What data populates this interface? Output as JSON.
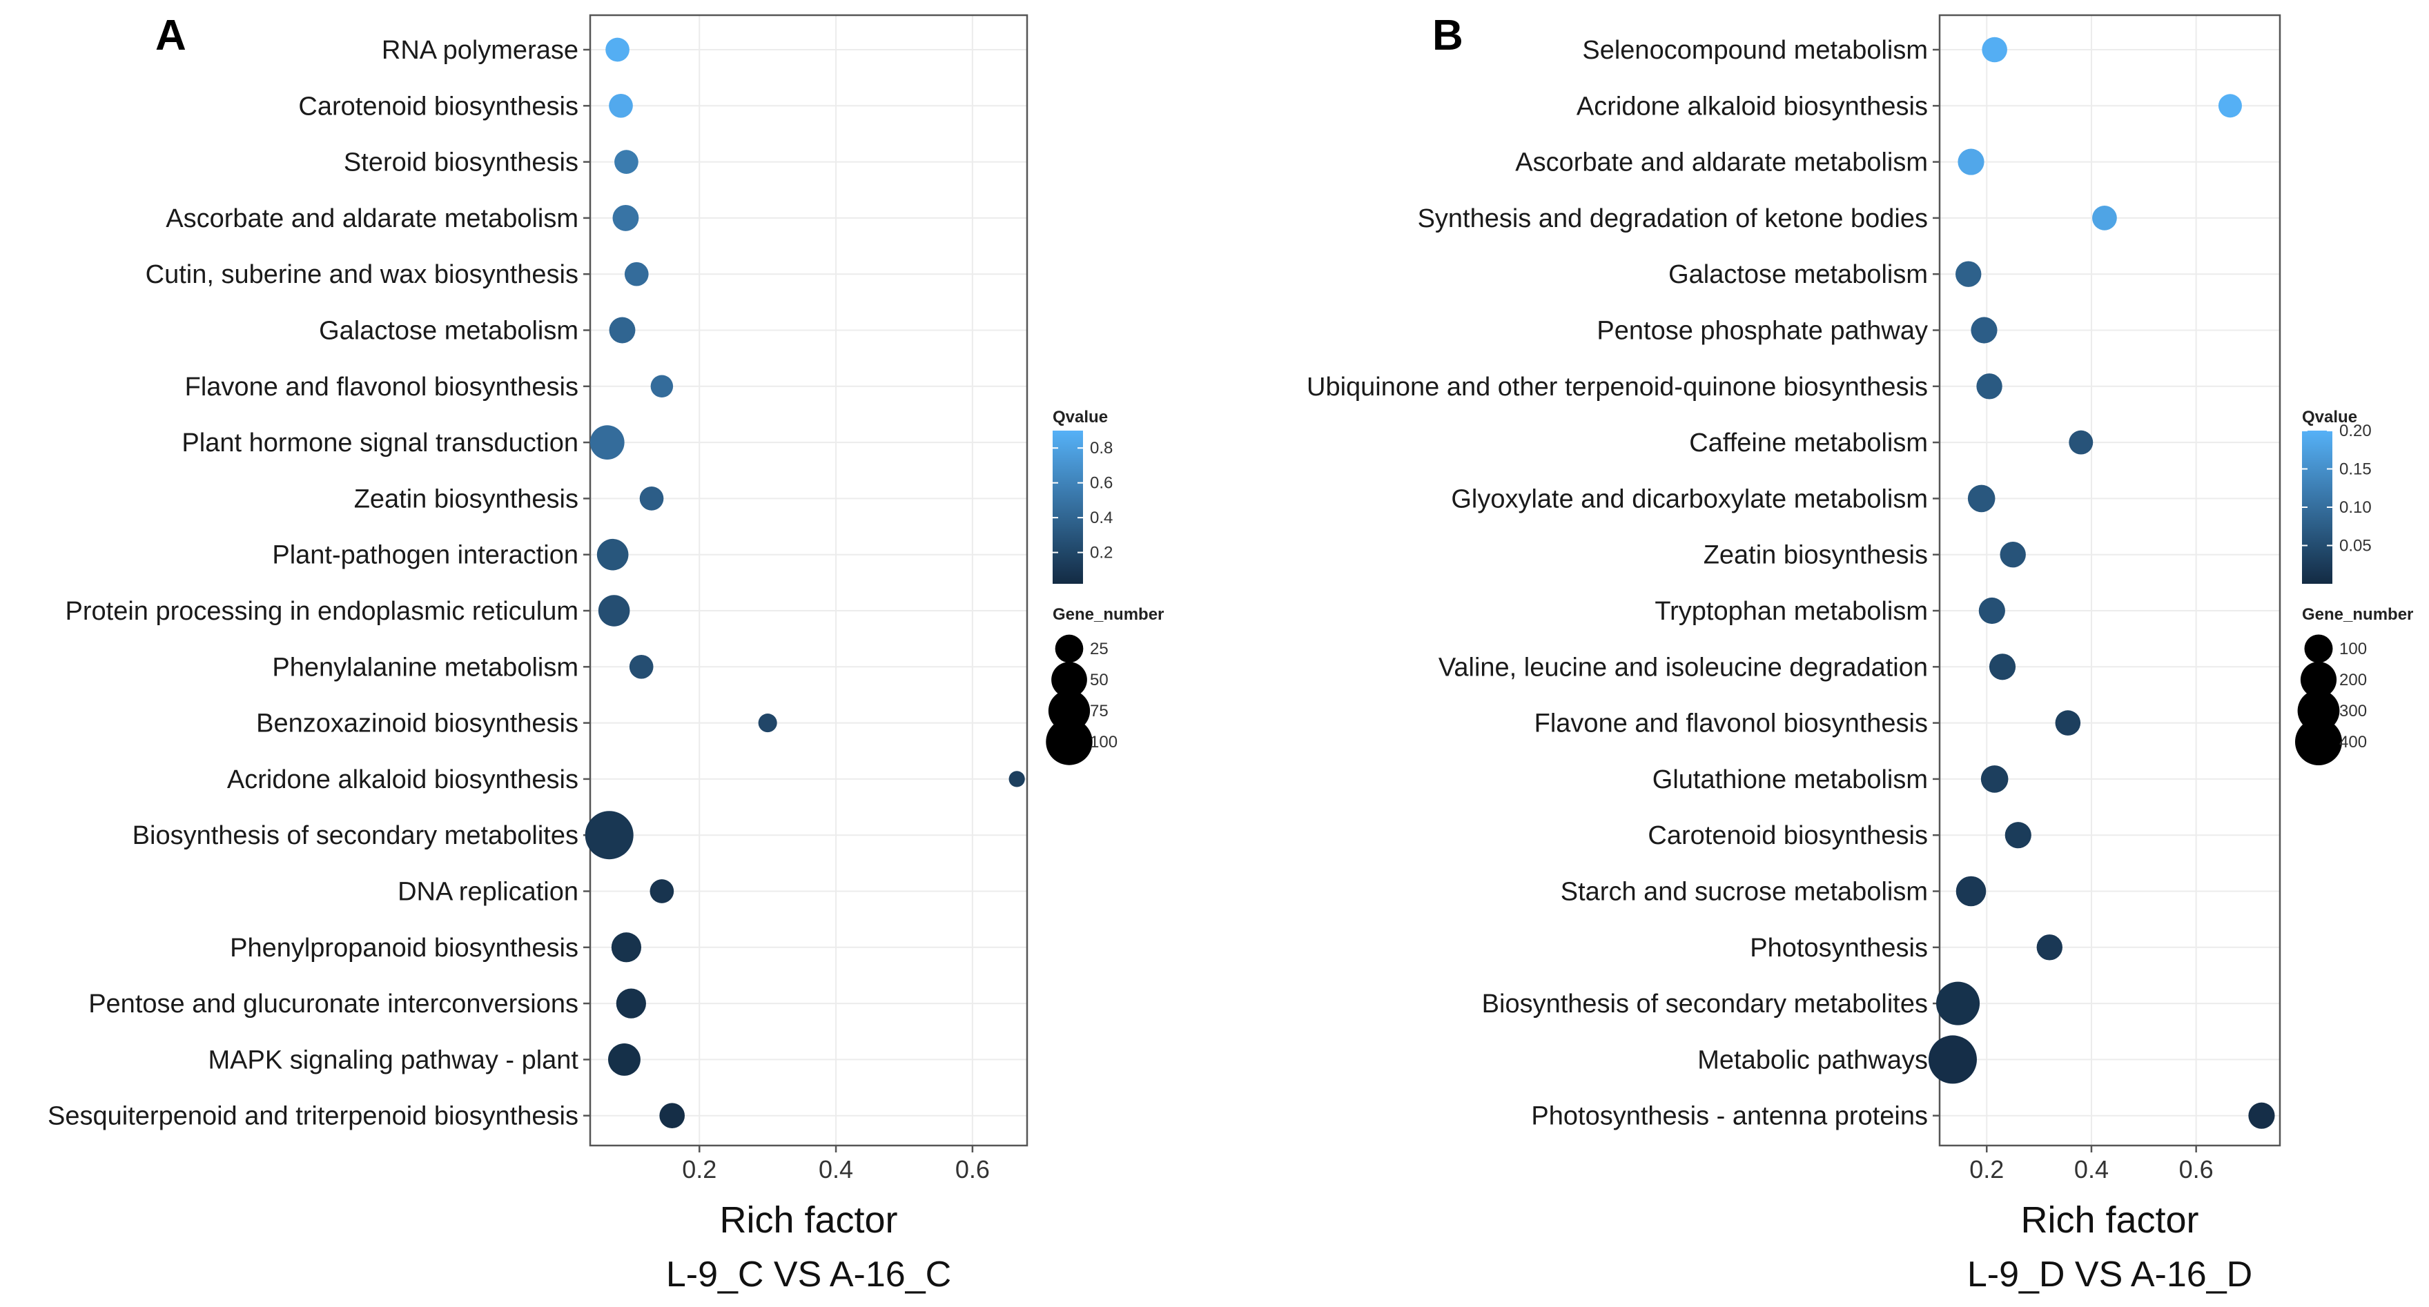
{
  "chart_data": [
    {
      "type": "scatter",
      "panel_label": "A",
      "xlabel": "Rich factor",
      "subtitle": "L-9_C VS A-16_C",
      "xlim": [
        0.04,
        0.68
      ],
      "xticks": [
        0.2,
        0.4,
        0.6
      ],
      "xtick_labels": [
        "0.2",
        "0.4",
        "0.6"
      ],
      "grid": true,
      "legend_position": "right",
      "qvalue_legend": {
        "title": "Qvalue",
        "range": [
          0.02,
          0.9
        ],
        "ticks": [
          0.8,
          0.6,
          0.4,
          0.2
        ],
        "tick_labels": [
          "0.8",
          "0.6",
          "0.4",
          "0.2"
        ]
      },
      "size_legend": {
        "title": "Gene_number",
        "values": [
          25,
          50,
          75,
          100
        ],
        "labels": [
          "25",
          "50",
          "75",
          "100"
        ],
        "max": 110
      },
      "points": [
        {
          "pathway": "RNA polymerase",
          "rich_factor": 0.08,
          "qvalue": 0.88,
          "gene_number": 15
        },
        {
          "pathway": "Carotenoid biosynthesis",
          "rich_factor": 0.085,
          "qvalue": 0.85,
          "gene_number": 15
        },
        {
          "pathway": "Steroid biosynthesis",
          "rich_factor": 0.093,
          "qvalue": 0.55,
          "gene_number": 15
        },
        {
          "pathway": "Ascorbate and aldarate metabolism",
          "rich_factor": 0.092,
          "qvalue": 0.5,
          "gene_number": 20
        },
        {
          "pathway": "Cutin, suberine and wax biosynthesis",
          "rich_factor": 0.108,
          "qvalue": 0.45,
          "gene_number": 15
        },
        {
          "pathway": "Galactose metabolism",
          "rich_factor": 0.087,
          "qvalue": 0.4,
          "gene_number": 20
        },
        {
          "pathway": "Flavone and flavonol biosynthesis",
          "rich_factor": 0.145,
          "qvalue": 0.45,
          "gene_number": 12
        },
        {
          "pathway": "Plant hormone signal transduction",
          "rich_factor": 0.065,
          "qvalue": 0.45,
          "gene_number": 45
        },
        {
          "pathway": "Zeatin biosynthesis",
          "rich_factor": 0.13,
          "qvalue": 0.35,
          "gene_number": 15
        },
        {
          "pathway": "Plant-pathogen interaction",
          "rich_factor": 0.073,
          "qvalue": 0.3,
          "gene_number": 35
        },
        {
          "pathway": "Protein processing in endoplasmic reticulum",
          "rich_factor": 0.075,
          "qvalue": 0.25,
          "gene_number": 35
        },
        {
          "pathway": "Phenylalanine metabolism",
          "rich_factor": 0.115,
          "qvalue": 0.25,
          "gene_number": 15
        },
        {
          "pathway": "Benzoxazinoid biosynthesis",
          "rich_factor": 0.3,
          "qvalue": 0.2,
          "gene_number": 6
        },
        {
          "pathway": "Acridone alkaloid biosynthesis",
          "rich_factor": 0.665,
          "qvalue": 0.15,
          "gene_number": 3
        },
        {
          "pathway": "Biosynthesis of secondary metabolites",
          "rich_factor": 0.068,
          "qvalue": 0.1,
          "gene_number": 110
        },
        {
          "pathway": "DNA replication",
          "rich_factor": 0.145,
          "qvalue": 0.08,
          "gene_number": 15
        },
        {
          "pathway": "Phenylpropanoid biosynthesis",
          "rich_factor": 0.093,
          "qvalue": 0.07,
          "gene_number": 30
        },
        {
          "pathway": "Pentose and glucuronate interconversions",
          "rich_factor": 0.1,
          "qvalue": 0.06,
          "gene_number": 30
        },
        {
          "pathway": "MAPK signaling pathway - plant",
          "rich_factor": 0.09,
          "qvalue": 0.05,
          "gene_number": 38
        },
        {
          "pathway": "Sesquiterpenoid and triterpenoid biosynthesis",
          "rich_factor": 0.16,
          "qvalue": 0.04,
          "gene_number": 18
        }
      ]
    },
    {
      "type": "scatter",
      "panel_label": "B",
      "xlabel": "Rich factor",
      "subtitle": "L-9_D VS A-16_D",
      "xlim": [
        0.11,
        0.76
      ],
      "xticks": [
        0.2,
        0.4,
        0.6
      ],
      "xtick_labels": [
        "0.2",
        "0.4",
        "0.6"
      ],
      "grid": true,
      "legend_position": "right",
      "qvalue_legend": {
        "title": "Qvalue",
        "range": [
          0.0,
          0.2
        ],
        "ticks": [
          0.2,
          0.15,
          0.1,
          0.05
        ],
        "tick_labels": [
          "0.20",
          "0.15",
          "0.10",
          "0.05"
        ]
      },
      "size_legend": {
        "title": "Gene_number",
        "values": [
          100,
          200,
          300,
          400
        ],
        "labels": [
          "100",
          "200",
          "300",
          "400"
        ],
        "max": 430
      },
      "points": [
        {
          "pathway": "Selenocompound metabolism",
          "rich_factor": 0.215,
          "qvalue": 0.195,
          "gene_number": 70
        },
        {
          "pathway": "Acridone alkaloid biosynthesis",
          "rich_factor": 0.665,
          "qvalue": 0.198,
          "gene_number": 55
        },
        {
          "pathway": "Ascorbate and aldarate metabolism",
          "rich_factor": 0.17,
          "qvalue": 0.185,
          "gene_number": 80
        },
        {
          "pathway": "Synthesis and degradation of ketone bodies",
          "rich_factor": 0.425,
          "qvalue": 0.18,
          "gene_number": 65
        },
        {
          "pathway": "Galactose metabolism",
          "rich_factor": 0.165,
          "qvalue": 0.08,
          "gene_number": 75
        },
        {
          "pathway": "Pentose phosphate pathway",
          "rich_factor": 0.195,
          "qvalue": 0.075,
          "gene_number": 80
        },
        {
          "pathway": "Ubiquinone and other terpenoid-quinone biosynthesis",
          "rich_factor": 0.205,
          "qvalue": 0.07,
          "gene_number": 75
        },
        {
          "pathway": "Caffeine metabolism",
          "rich_factor": 0.38,
          "qvalue": 0.06,
          "gene_number": 60
        },
        {
          "pathway": "Glyoxylate and dicarboxylate metabolism",
          "rich_factor": 0.19,
          "qvalue": 0.065,
          "gene_number": 90
        },
        {
          "pathway": "Zeatin biosynthesis",
          "rich_factor": 0.25,
          "qvalue": 0.06,
          "gene_number": 75
        },
        {
          "pathway": "Tryptophan metabolism",
          "rich_factor": 0.21,
          "qvalue": 0.055,
          "gene_number": 80
        },
        {
          "pathway": "Valine, leucine and isoleucine degradation",
          "rich_factor": 0.23,
          "qvalue": 0.04,
          "gene_number": 80
        },
        {
          "pathway": "Flavone and flavonol biosynthesis",
          "rich_factor": 0.355,
          "qvalue": 0.03,
          "gene_number": 70
        },
        {
          "pathway": "Glutathione metabolism",
          "rich_factor": 0.215,
          "qvalue": 0.03,
          "gene_number": 90
        },
        {
          "pathway": "Carotenoid biosynthesis",
          "rich_factor": 0.26,
          "qvalue": 0.025,
          "gene_number": 80
        },
        {
          "pathway": "Starch and sucrose metabolism",
          "rich_factor": 0.17,
          "qvalue": 0.02,
          "gene_number": 120
        },
        {
          "pathway": "Photosynthesis",
          "rich_factor": 0.32,
          "qvalue": 0.02,
          "gene_number": 75
        },
        {
          "pathway": "Biosynthesis of secondary metabolites",
          "rich_factor": 0.145,
          "qvalue": 0.01,
          "gene_number": 330
        },
        {
          "pathway": "Metabolic pathways",
          "rich_factor": 0.135,
          "qvalue": 0.005,
          "gene_number": 430
        },
        {
          "pathway": "Photosynthesis - antenna proteins",
          "rich_factor": 0.725,
          "qvalue": 0.005,
          "gene_number": 80
        }
      ]
    }
  ]
}
